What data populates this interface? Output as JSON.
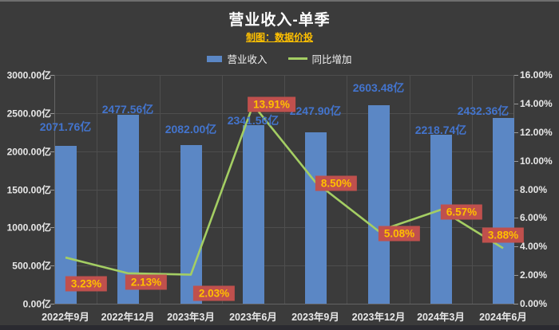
{
  "title": "营业收入-单季",
  "subtitle": "制图：数据价投",
  "legend": {
    "bar_label": "营业收入",
    "line_label": "同比增加"
  },
  "chart_data": {
    "type": "combo-bar-line",
    "title": "营业收入-单季",
    "categories": [
      "2022年9月",
      "2022年12月",
      "2023年3月",
      "2023年6月",
      "2023年9月",
      "2023年12月",
      "2024年3月",
      "2024年6月"
    ],
    "series": [
      {
        "name": "营业收入",
        "type": "bar",
        "axis": "left",
        "unit": "亿",
        "values": [
          2071.76,
          2477.56,
          2082.0,
          2341.56,
          2247.9,
          2603.48,
          2218.74,
          2432.36
        ],
        "data_labels": [
          "2071.76亿",
          "2477.56亿",
          "2082.00亿",
          "2341.56亿",
          "2247.90亿",
          "2603.48亿",
          "2218.74亿",
          "2432.36亿"
        ]
      },
      {
        "name": "同比增加",
        "type": "line",
        "axis": "right",
        "unit": "%",
        "values": [
          3.23,
          2.13,
          2.03,
          13.91,
          8.5,
          5.08,
          6.57,
          3.88
        ],
        "data_labels": [
          "3.23%",
          "2.13%",
          "2.03%",
          "13.91%",
          "8.50%",
          "5.08%",
          "6.57%",
          "3.88%"
        ]
      }
    ],
    "left_axis": {
      "min": 0,
      "max": 3000,
      "tick_labels": [
        "3000.00亿",
        "2500.00亿",
        "2000.00亿",
        "1500.00亿",
        "1000.00亿",
        "500.00亿",
        "0.00亿"
      ]
    },
    "right_axis": {
      "min": 0,
      "max": 16,
      "tick_labels": [
        "16.00%",
        "14.00%",
        "12.00%",
        "10.00%",
        "8.00%",
        "6.00%",
        "4.00%",
        "2.00%",
        "0.00%"
      ]
    },
    "grid": true,
    "legend_position": "top"
  },
  "colors": {
    "background": "#3b3b3b",
    "bar": "#5b87c5",
    "bar_label": "#4374cd",
    "line": "#a4ce63",
    "pct_box_bg": "#c0504d",
    "pct_box_text": "#ffc000",
    "axis_text": "#e8e8e8",
    "gridline": "#4e4e4e",
    "title_text": "#ffffff",
    "subtitle_text": "#ffc000"
  }
}
